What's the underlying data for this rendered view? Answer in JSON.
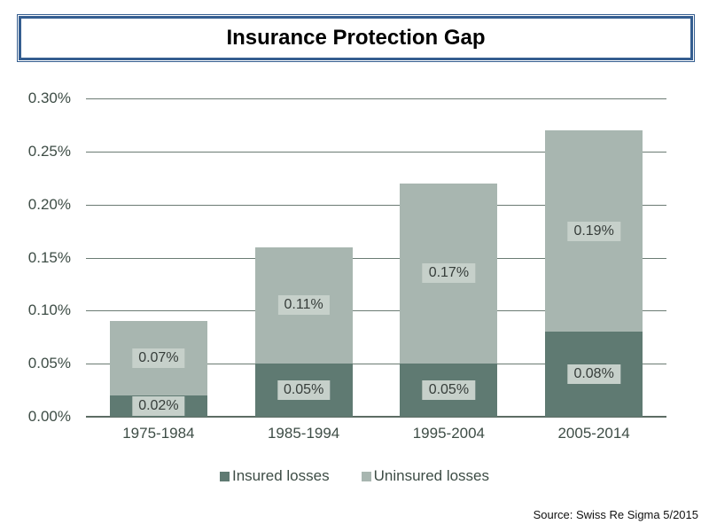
{
  "title": "Insurance Protection Gap",
  "source_note": "Source: Swiss Re Sigma 5/2015",
  "colors": {
    "insured": "#5f7a72",
    "uninsured": "#a8b6b0",
    "title_border": "#355e90",
    "gridline": "#6b7b73",
    "axis_text": "#3e4d46",
    "data_label_bg": "#c6d0ca",
    "data_label_text": "#363d3a"
  },
  "chart_data": {
    "type": "bar",
    "stacked": true,
    "title": "Insurance Protection Gap",
    "categories": [
      "1975-1984",
      "1985-1994",
      "1995-2004",
      "2005-2014"
    ],
    "series": [
      {
        "name": "Insured losses",
        "color_key": "insured",
        "values": [
          0.02,
          0.05,
          0.05,
          0.08
        ],
        "labels": [
          "0.02%",
          "0.05%",
          "0.05%",
          "0.08%"
        ]
      },
      {
        "name": "Uninsured losses",
        "color_key": "uninsured",
        "values": [
          0.07,
          0.11,
          0.17,
          0.19
        ],
        "labels": [
          "0.07%",
          "0.11%",
          "0.17%",
          "0.19%"
        ]
      }
    ],
    "y_ticks": [
      "0.00%",
      "0.05%",
      "0.10%",
      "0.15%",
      "0.20%",
      "0.25%",
      "0.30%"
    ],
    "ylim": [
      0,
      0.3
    ],
    "grid": true,
    "legend": [
      "Insured losses",
      "Uninsured losses"
    ],
    "legend_position": "bottom",
    "xlabel": "",
    "ylabel": ""
  }
}
